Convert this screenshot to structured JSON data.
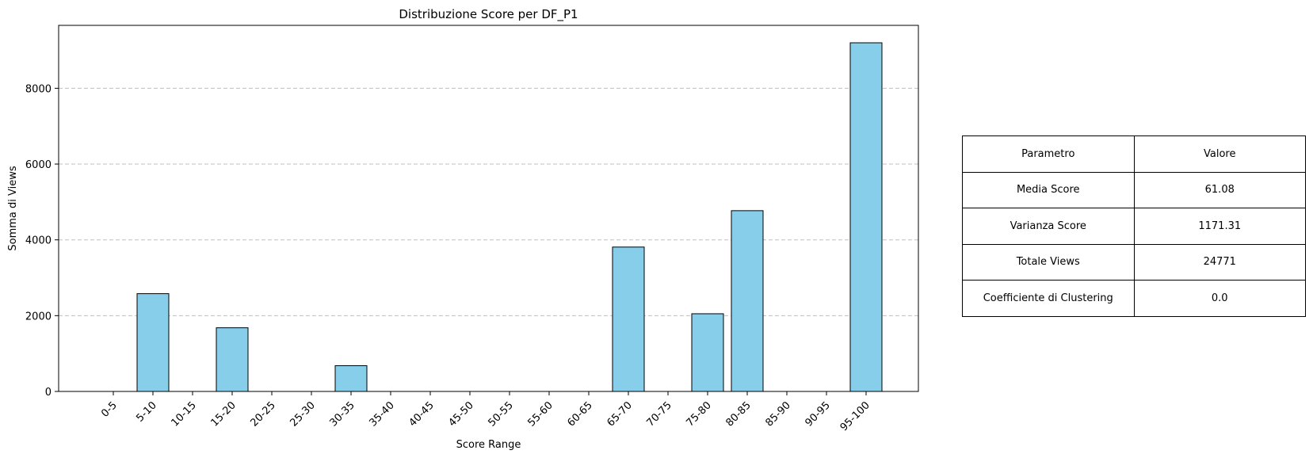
{
  "chart_data": {
    "type": "bar",
    "title": "Distribuzione Score per DF_P1",
    "xlabel": "Score Range",
    "ylabel": "Somma di Views",
    "categories": [
      "0-5",
      "5-10",
      "10-15",
      "15-20",
      "20-25",
      "25-30",
      "30-35",
      "35-40",
      "40-45",
      "45-50",
      "50-55",
      "55-60",
      "60-65",
      "65-70",
      "70-75",
      "75-80",
      "80-85",
      "85-90",
      "90-95",
      "95-100"
    ],
    "values": [
      0,
      2580,
      0,
      1680,
      0,
      0,
      680,
      0,
      0,
      0,
      0,
      0,
      0,
      3810,
      0,
      2050,
      4770,
      0,
      0,
      9200
    ],
    "ylim": [
      0,
      9660
    ],
    "yticks": [
      0,
      2000,
      4000,
      6000,
      8000
    ],
    "ytick_labels": [
      "0",
      "2000",
      "4000",
      "6000",
      "8000"
    ],
    "grid": "y-dashed",
    "colors": {
      "bar": "#87ceeb",
      "edge": "#000000",
      "grid": "#bfbfbf"
    }
  },
  "table": {
    "header": [
      "Parametro",
      "Valore"
    ],
    "rows": [
      [
        "Media Score",
        "61.08"
      ],
      [
        "Varianza Score",
        "1171.31"
      ],
      [
        "Totale Views",
        "24771"
      ],
      [
        "Coefficiente di Clustering",
        "0.0"
      ]
    ]
  }
}
